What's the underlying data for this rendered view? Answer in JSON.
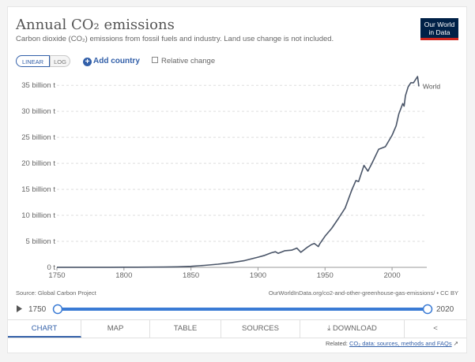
{
  "header": {
    "title": "Annual CO₂ emissions",
    "subtitle": "Carbon dioxide (CO₂) emissions from fossil fuels and industry. Land use change is not included.",
    "logo_line1": "Our World",
    "logo_line2": "in Data"
  },
  "controls": {
    "linear_label": "LINEAR",
    "log_label": "LOG",
    "add_country_label": "Add country",
    "relative_change_label": "Relative change"
  },
  "chart_data": {
    "type": "line",
    "title": "Annual CO₂ emissions",
    "xlabel": "",
    "ylabel": "",
    "xlim": [
      1750,
      2020
    ],
    "ylim": [
      0,
      37000000000
    ],
    "x_ticks": [
      "1750",
      "1800",
      "1850",
      "1900",
      "1950",
      "2000"
    ],
    "y_ticks": [
      "0 t",
      "5 billion t",
      "10 billion t",
      "15 billion t",
      "20 billion t",
      "25 billion t",
      "30 billion t",
      "35 billion t"
    ],
    "y_tick_values": [
      0,
      5000000000,
      10000000000,
      15000000000,
      20000000000,
      25000000000,
      30000000000,
      35000000000
    ],
    "grid": true,
    "legend": "line-end label",
    "series": [
      {
        "name": "World",
        "color": "#4a5568",
        "x": [
          1750,
          1760,
          1770,
          1780,
          1790,
          1800,
          1810,
          1820,
          1830,
          1840,
          1850,
          1860,
          1870,
          1880,
          1890,
          1900,
          1905,
          1910,
          1913,
          1915,
          1918,
          1920,
          1925,
          1929,
          1932,
          1937,
          1940,
          1942,
          1945,
          1946,
          1950,
          1955,
          1960,
          1965,
          1970,
          1973,
          1975,
          1979,
          1982,
          1985,
          1990,
          1995,
          2000,
          2003,
          2005,
          2008,
          2009,
          2010,
          2012,
          2014,
          2016,
          2019,
          2020
        ],
        "values": [
          9000000,
          11000000,
          14000000,
          17000000,
          21000000,
          28000000,
          35000000,
          45000000,
          65000000,
          100000000,
          197000000,
          380000000,
          600000000,
          900000000,
          1300000000,
          1950000000,
          2300000000,
          2800000000,
          3000000000,
          2700000000,
          3000000000,
          3200000000,
          3300000000,
          3700000000,
          2900000000,
          3900000000,
          4400000000,
          4600000000,
          4000000000,
          4500000000,
          6000000000,
          7500000000,
          9400000000,
          11400000000,
          14900000000,
          16700000000,
          16500000000,
          19600000000,
          18500000000,
          20000000000,
          22700000000,
          23200000000,
          25400000000,
          27200000000,
          29500000000,
          31500000000,
          31000000000,
          33000000000,
          34700000000,
          35500000000,
          35500000000,
          36700000000,
          34800000000
        ]
      }
    ]
  },
  "footer": {
    "source": "Source: Global Carbon Project",
    "url": "OurWorldInData.org/co2-and-other-greenhouse-gas-emissions/ • CC BY",
    "timeline_start": "1750",
    "timeline_end": "2020",
    "tabs": [
      "CHART",
      "MAP",
      "TABLE",
      "SOURCES",
      "DOWNLOAD"
    ],
    "related_label": "Related:",
    "related_link": "CO₂ data: sources, methods and FAQs"
  },
  "colors": {
    "accent": "#3360a9",
    "brand": "#002147",
    "brand_red": "#ce261e",
    "line": "#4a5568"
  }
}
